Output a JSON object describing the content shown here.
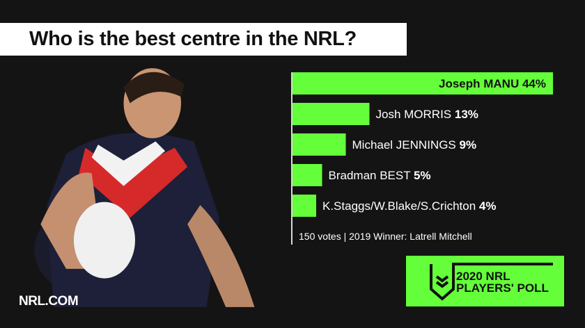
{
  "title": "Who is the best centre in the NRL?",
  "chart_data": {
    "type": "bar",
    "orientation": "horizontal",
    "categories": [
      "Joseph MANU",
      "Josh MORRIS",
      "Michael JENNINGS",
      "Bradman BEST",
      "K.Staggs/W.Blake/S.Crichton"
    ],
    "values": [
      44,
      13,
      9,
      5,
      4
    ],
    "value_labels": [
      "44%",
      "13%",
      "9%",
      "5%",
      "4%"
    ],
    "bar_color": "#64ff3a",
    "footnote": "150 votes | 2019 Winner: Latrell Mitchell"
  },
  "branding": {
    "site": "NRL.COM",
    "logo_line1": "2020 NRL",
    "logo_line2": "PLAYERS' POLL"
  }
}
